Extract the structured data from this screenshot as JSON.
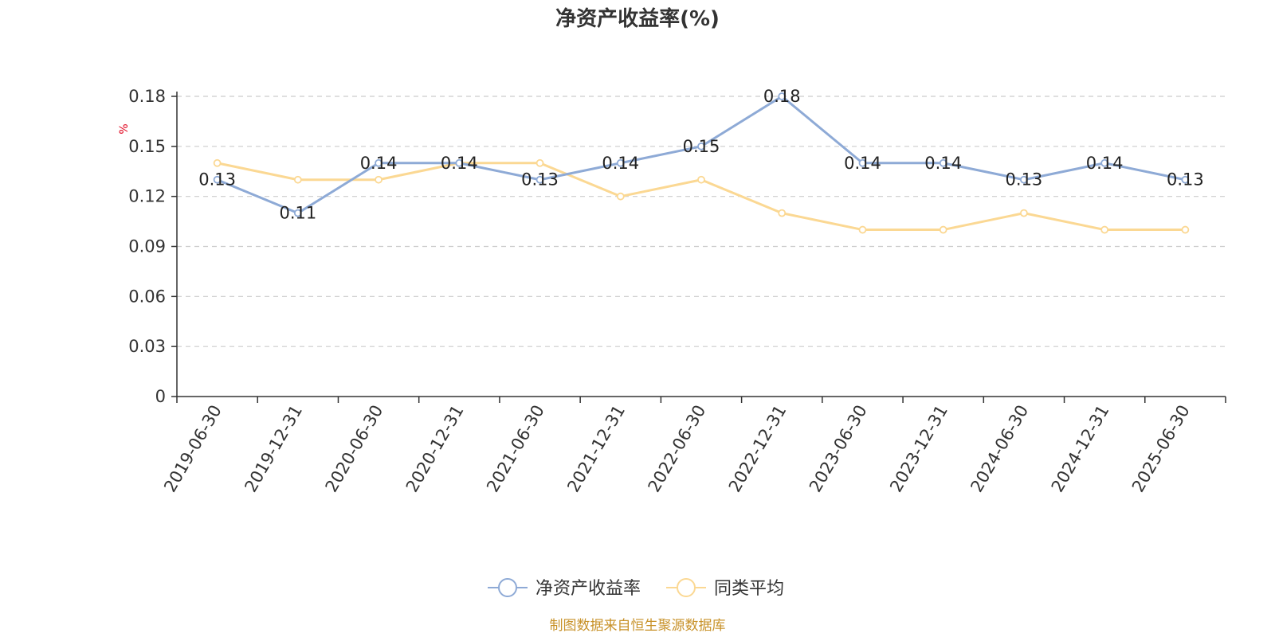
{
  "chart_data": {
    "type": "line",
    "title": "净资产收益率(%)",
    "ylabel": "%",
    "ylim": [
      0,
      0.18
    ],
    "yticks": [
      "0",
      "0.03",
      "0.06",
      "0.09",
      "0.12",
      "0.15",
      "0.18"
    ],
    "ytick_values": [
      0,
      0.03,
      0.06,
      0.09,
      0.12,
      0.15,
      0.18
    ],
    "categories": [
      "2019-06-30",
      "2019-12-31",
      "2020-06-30",
      "2020-12-31",
      "2021-06-30",
      "2021-12-31",
      "2022-06-30",
      "2022-12-31",
      "2023-06-30",
      "2023-12-31",
      "2024-06-30",
      "2024-12-31",
      "2025-06-30"
    ],
    "grid": true,
    "legend_position": "bottom",
    "series": [
      {
        "name": "净资产收益率",
        "color": "#8eaad6",
        "values": [
          0.13,
          0.11,
          0.14,
          0.14,
          0.13,
          0.14,
          0.15,
          0.18,
          0.14,
          0.14,
          0.13,
          0.14,
          0.13
        ],
        "labels": [
          "0.13",
          "0.11",
          "0.14",
          "0.14",
          "0.13",
          "0.14",
          "0.15",
          "0.18",
          "0.14",
          "0.14",
          "0.13",
          "0.14",
          "0.13"
        ]
      },
      {
        "name": "同类平均",
        "color": "#fbd893",
        "values": [
          0.14,
          0.13,
          0.13,
          0.14,
          0.14,
          0.12,
          0.13,
          0.11,
          0.1,
          0.1,
          0.11,
          0.1,
          0.1
        ]
      }
    ]
  },
  "footer": {
    "source": "制图数据来自恒生聚源数据库"
  }
}
